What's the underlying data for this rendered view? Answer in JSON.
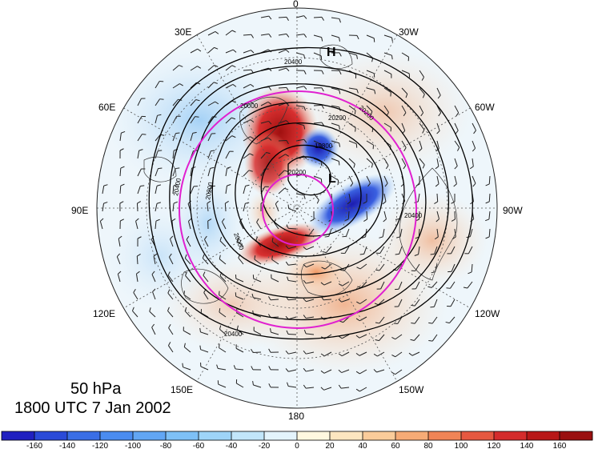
{
  "map": {
    "projection": "north-polar-stereographic",
    "level_label": "50 hPa",
    "time_label": "1800 UTC 7 Jan 2002",
    "longitude_labels": [
      "0",
      "30W",
      "60W",
      "90W",
      "120W",
      "150W",
      "180",
      "150E",
      "120E",
      "90E",
      "60E",
      "30E"
    ],
    "contour_labels": [
      "20400",
      "20200",
      "20000",
      "19800",
      "20200",
      "20400",
      "20000",
      "20400",
      "20200",
      "20400",
      "20200"
    ],
    "high_marker": "H",
    "low_marker": "L",
    "colorbar": {
      "ticks": [
        "-160",
        "-140",
        "-120",
        "-100",
        "-80",
        "-60",
        "-40",
        "-20",
        "0",
        "20",
        "40",
        "60",
        "80",
        "100",
        "120",
        "140",
        "160"
      ],
      "colors": [
        "#2020c0",
        "#2a4ad8",
        "#3a6ee6",
        "#4a8cf0",
        "#62a6f4",
        "#7ec0f6",
        "#9ed4f8",
        "#c2e6fa",
        "#e4f4fc",
        "#fff8e0",
        "#fde6c0",
        "#fbcc9a",
        "#f6ab76",
        "#f08456",
        "#e65840",
        "#d42c2c",
        "#b81818",
        "#9a1010"
      ]
    }
  }
}
